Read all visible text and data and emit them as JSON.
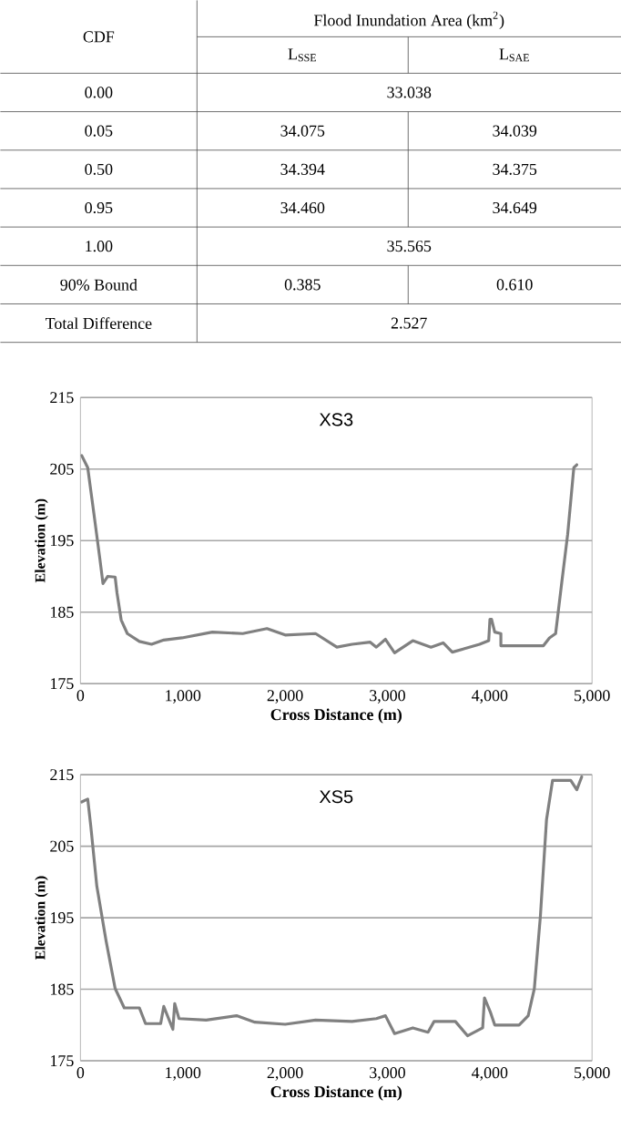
{
  "chart_data": [
    {
      "type": "other",
      "title": "Flood Inundation Area (km$^{2}$)",
      "annotations": [
        "CDF",
        "L$_{SSE}$",
        "L$_{SAE}$",
        "0.00",
        "33.038",
        "0.05",
        "34.075",
        "34.039",
        "0.50",
        "34.394",
        "34.375",
        "0.95",
        "34.460",
        "34.649",
        "1.00",
        "35.565",
        "90% Bound",
        "0.385",
        "0.610",
        "Total Difference",
        "2.527"
      ]
    },
    {
      "type": "line",
      "title": "XS3",
      "xlabel": "Cross Distance (m)",
      "ylabel": "Elevation (m)",
      "color": "#808080",
      "grid": "y",
      "xlim": [
        0,
        5000
      ],
      "ylim": [
        175,
        215
      ],
      "xticks": [
        0,
        {
          "value": 1000,
          "label": "1,000"
        },
        {
          "value": 2000,
          "label": "2,000"
        },
        {
          "value": 3000,
          "label": "3,000"
        },
        {
          "value": 4000,
          "label": "4,000"
        },
        {
          "value": 5000,
          "label": "5,000"
        }
      ],
      "yticks": [
        175,
        185,
        195,
        205,
        215
      ],
      "x": [
        12,
        71,
        131,
        190,
        220,
        267,
        339,
        357,
        398,
        458,
        576,
        695,
        814,
        992,
        1289,
        1586,
        1823,
        2001,
        2298,
        2506,
        2654,
        2832,
        2892,
        2981,
        3070,
        3248,
        3426,
        3545,
        3634,
        3901,
        3990,
        4002,
        4018,
        4049,
        4109,
        4109,
        4525,
        4584,
        4644,
        4703,
        4762,
        4822,
        4851
      ],
      "values": [
        206.9,
        205.2,
        198.8,
        192.4,
        189,
        190,
        189.9,
        187.7,
        183.9,
        182,
        180.9,
        180.5,
        181.1,
        181.4,
        182.2,
        182,
        182.7,
        181.8,
        182,
        180.1,
        180.5,
        180.8,
        180.1,
        181.2,
        179.3,
        181,
        180.1,
        180.7,
        179.4,
        180.5,
        181,
        184,
        184,
        182.2,
        182,
        180.3,
        180.3,
        181.4,
        182,
        189,
        195.9,
        205.2,
        205.6
      ]
    },
    {
      "type": "line",
      "title": "XS5",
      "xlabel": "Cross Distance (m)",
      "ylabel": "Elevation (m)",
      "color": "#808080",
      "grid": "y",
      "xlim": [
        0,
        5000
      ],
      "ylim": [
        175,
        215
      ],
      "xticks": [
        0,
        {
          "value": 1000,
          "label": "1,000"
        },
        {
          "value": 2000,
          "label": "2,000"
        },
        {
          "value": 3000,
          "label": "3,000"
        },
        {
          "value": 4000,
          "label": "4,000"
        },
        {
          "value": 5000,
          "label": "5,000"
        }
      ],
      "yticks": [
        175,
        185,
        195,
        205,
        215
      ],
      "x": [
        12,
        71,
        101,
        160,
        250,
        339,
        428,
        576,
        636,
        784,
        814,
        903,
        921,
        963,
        1229,
        1526,
        1704,
        2001,
        2298,
        2654,
        2892,
        2981,
        3070,
        3248,
        3397,
        3456,
        3664,
        3783,
        3931,
        3949,
        4009,
        4049,
        4287,
        4376,
        4436,
        4495,
        4555,
        4614,
        4792,
        4851,
        4899
      ],
      "values": [
        211.2,
        211.6,
        207.8,
        199.4,
        191.8,
        185.1,
        182.4,
        182.4,
        180.2,
        180.2,
        182.6,
        179.4,
        183,
        180.9,
        180.7,
        181.3,
        180.4,
        180.1,
        180.7,
        180.5,
        180.9,
        181.3,
        178.8,
        179.6,
        179,
        180.5,
        180.5,
        178.5,
        179.6,
        183.8,
        181.7,
        180,
        180,
        181.3,
        185.1,
        195.2,
        208.7,
        214.2,
        214.2,
        212.9,
        214.7
      ]
    }
  ]
}
